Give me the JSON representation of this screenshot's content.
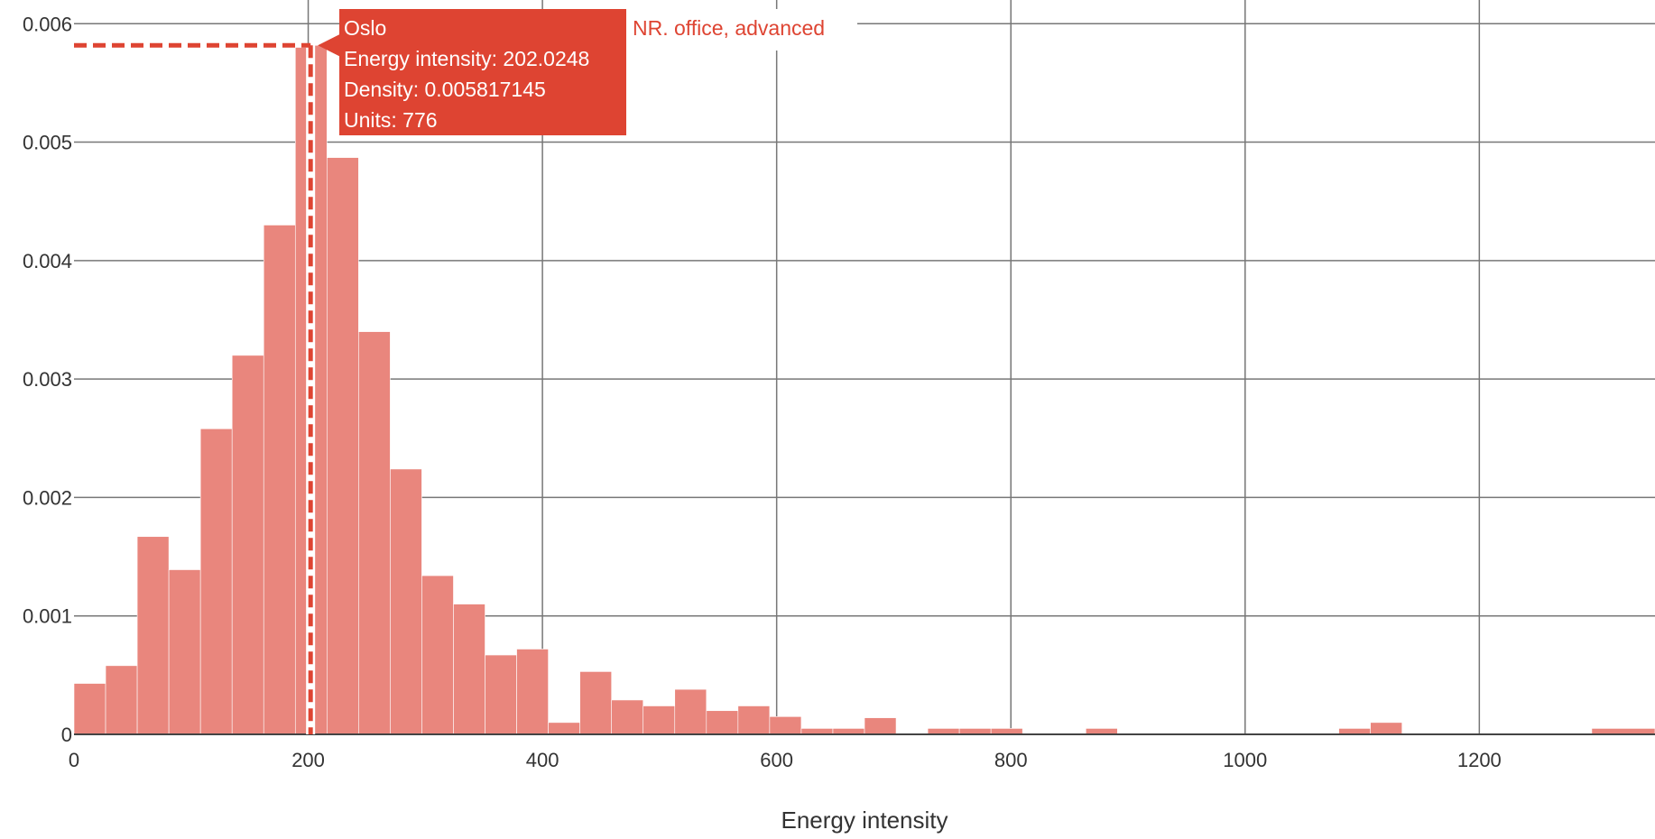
{
  "chart_data": {
    "type": "bar",
    "subtype": "histogram",
    "xlabel": "Energy intensity",
    "ylabel": "",
    "xlim": [
      0,
      1350
    ],
    "ylim": [
      0,
      0.0062
    ],
    "xticks": [
      0,
      200,
      400,
      600,
      800,
      1000,
      1200
    ],
    "xtick_labels": [
      "0",
      "200",
      "400",
      "600",
      "800",
      "1000",
      "1200"
    ],
    "yticks": [
      0,
      0.001,
      0.002,
      0.003,
      0.004,
      0.005,
      0.006
    ],
    "ytick_labels": [
      "0",
      "0.001",
      "0.002",
      "0.003",
      "0.004",
      "0.005",
      "0.006"
    ],
    "grid": true,
    "colors": {
      "bars": "#e9867d",
      "marker": "#de4432",
      "tooltip_bg": "#de4432"
    },
    "bins": [
      {
        "x0": 0,
        "x1": 27,
        "y": 0.00043
      },
      {
        "x0": 27,
        "x1": 54,
        "y": 0.00058
      },
      {
        "x0": 54,
        "x1": 81,
        "y": 0.00167
      },
      {
        "x0": 81,
        "x1": 108,
        "y": 0.00139
      },
      {
        "x0": 108,
        "x1": 135,
        "y": 0.00258
      },
      {
        "x0": 135,
        "x1": 162,
        "y": 0.0032
      },
      {
        "x0": 162,
        "x1": 189,
        "y": 0.0043
      },
      {
        "x0": 189,
        "x1": 200,
        "y": 0.0058
      },
      {
        "x0": 200,
        "x1": 216,
        "y": 0.005817
      },
      {
        "x0": 216,
        "x1": 243,
        "y": 0.00487
      },
      {
        "x0": 243,
        "x1": 270,
        "y": 0.0034
      },
      {
        "x0": 270,
        "x1": 297,
        "y": 0.00224
      },
      {
        "x0": 297,
        "x1": 324,
        "y": 0.00134
      },
      {
        "x0": 324,
        "x1": 351,
        "y": 0.0011
      },
      {
        "x0": 351,
        "x1": 378,
        "y": 0.00067
      },
      {
        "x0": 378,
        "x1": 405,
        "y": 0.00072
      },
      {
        "x0": 405,
        "x1": 432,
        "y": 0.0001
      },
      {
        "x0": 432,
        "x1": 459,
        "y": 0.00053
      },
      {
        "x0": 459,
        "x1": 486,
        "y": 0.00029
      },
      {
        "x0": 486,
        "x1": 513,
        "y": 0.00024
      },
      {
        "x0": 513,
        "x1": 540,
        "y": 0.00038
      },
      {
        "x0": 540,
        "x1": 567,
        "y": 0.0002
      },
      {
        "x0": 567,
        "x1": 594,
        "y": 0.00024
      },
      {
        "x0": 594,
        "x1": 621,
        "y": 0.00015
      },
      {
        "x0": 621,
        "x1": 648,
        "y": 5e-05
      },
      {
        "x0": 648,
        "x1": 675,
        "y": 5e-05
      },
      {
        "x0": 675,
        "x1": 702,
        "y": 0.00014
      },
      {
        "x0": 729,
        "x1": 756,
        "y": 5e-05
      },
      {
        "x0": 756,
        "x1": 783,
        "y": 5e-05
      },
      {
        "x0": 783,
        "x1": 810,
        "y": 5e-05
      },
      {
        "x0": 864,
        "x1": 891,
        "y": 5e-05
      },
      {
        "x0": 1080,
        "x1": 1107,
        "y": 5e-05
      },
      {
        "x0": 1107,
        "x1": 1134,
        "y": 0.0001
      },
      {
        "x0": 1296,
        "x1": 1350,
        "y": 5e-05
      }
    ],
    "marker": {
      "x": 202.0248,
      "y": 0.005817145
    },
    "tooltip": {
      "title": "Oslo",
      "lines": [
        "Energy intensity: 202.0248",
        "Density: 0.005817145",
        "Units: 776"
      ],
      "trace_name": "NR. office, advanced"
    }
  }
}
